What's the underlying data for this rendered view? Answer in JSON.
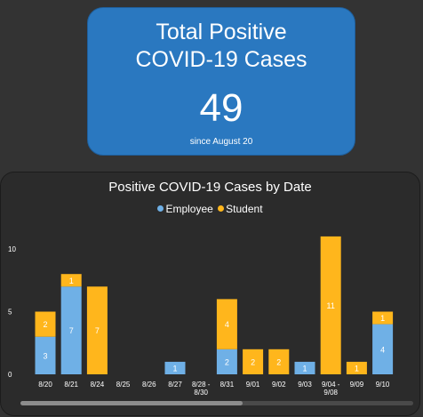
{
  "card": {
    "title_line1": "Total Positive",
    "title_line2": "COVID-19 Cases",
    "total": "49",
    "since": "since August 20"
  },
  "colors": {
    "card_background": "#2a78c0",
    "employee": "#6fb0e6",
    "student": "#ffb61c",
    "page_background": "#333333"
  },
  "chart_data": {
    "type": "bar",
    "stacked": true,
    "title": "Positive COVID-19 Cases by Date",
    "categories": [
      [
        "8/20"
      ],
      [
        "8/21"
      ],
      [
        "8/24"
      ],
      [
        "8/25"
      ],
      [
        "8/26"
      ],
      [
        "8/27"
      ],
      [
        "8/28 -",
        "8/30"
      ],
      [
        "8/31"
      ],
      [
        "9/01"
      ],
      [
        "9/02"
      ],
      [
        "9/03"
      ],
      [
        "9/04 -",
        "9/08"
      ],
      [
        "9/09"
      ],
      [
        "9/10"
      ]
    ],
    "series": [
      {
        "name": "Employee",
        "values": [
          3,
          7,
          0,
          0,
          0,
          1,
          0,
          2,
          0,
          0,
          1,
          0,
          0,
          4
        ]
      },
      {
        "name": "Student",
        "values": [
          2,
          1,
          7,
          0,
          0,
          0,
          0,
          4,
          2,
          2,
          0,
          11,
          1,
          1
        ]
      }
    ],
    "yticks": [
      "0",
      "5",
      "10"
    ],
    "ylim": [
      0,
      11
    ],
    "legend_position": "top-center",
    "grid": false
  }
}
